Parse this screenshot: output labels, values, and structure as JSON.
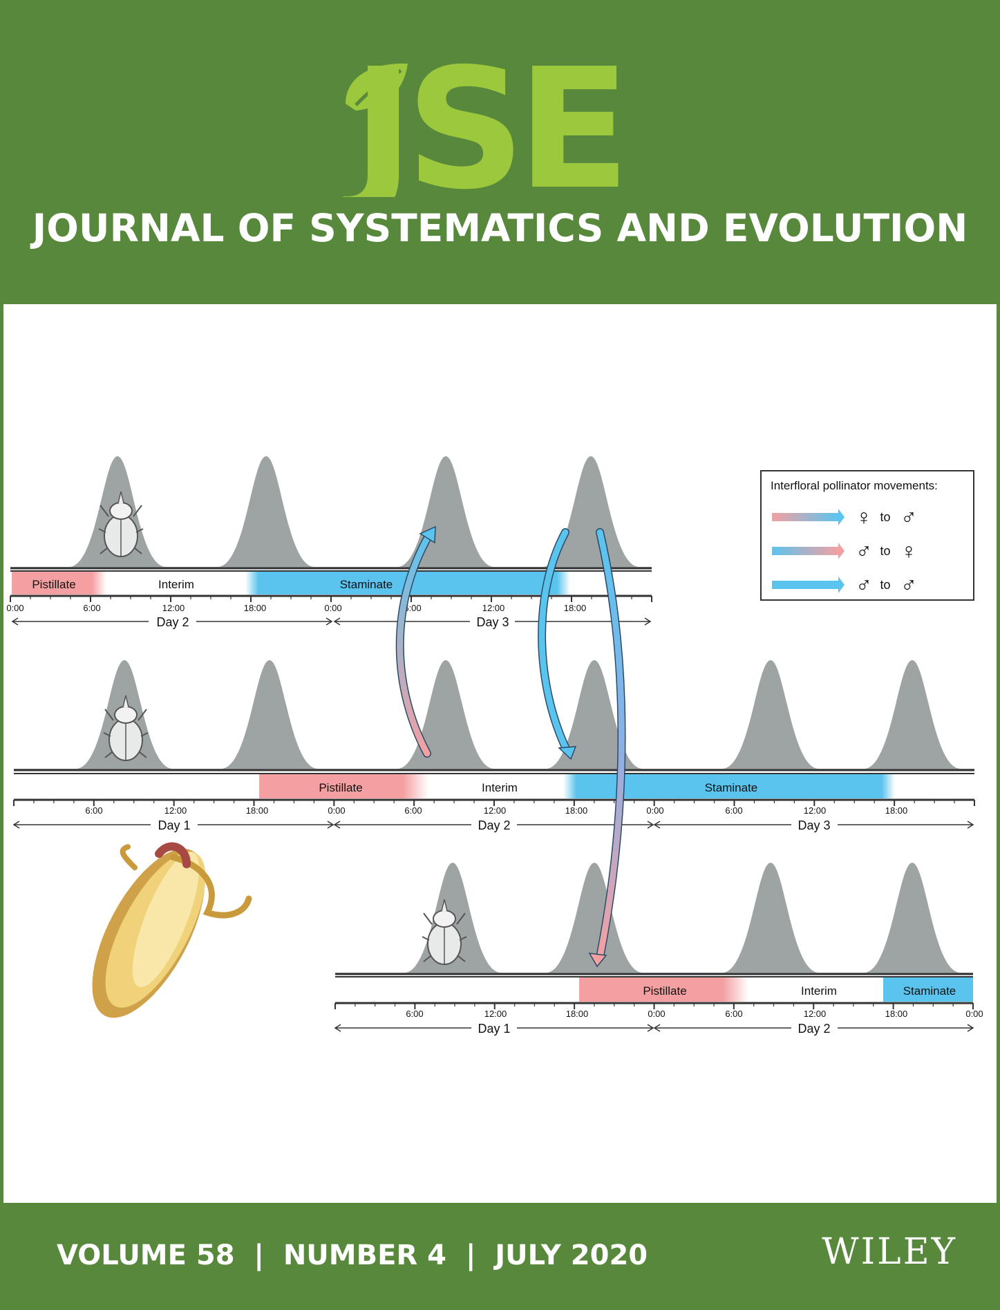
{
  "masthead": {
    "logo": "JSE",
    "journal_title": "JOURNAL OF SYSTEMATICS AND EVOLUTION",
    "colors": {
      "band": "#58883c",
      "logo": "#9bc83c",
      "text": "#ffffff"
    }
  },
  "footer": {
    "issue_line": "VOLUME 58  |  NUMBER 4  |  JULY 2020",
    "publisher": "WILEY"
  },
  "figure": {
    "legend": {
      "title": "Interfloral pollinator movements:",
      "items": [
        {
          "from": "♀",
          "word": "to",
          "to": "♂"
        },
        {
          "from": "♂",
          "word": "to",
          "to": "♀"
        },
        {
          "from": "♂",
          "word": "to",
          "to": "♂"
        }
      ]
    },
    "phases": {
      "pistillate": "Pistillate",
      "interim": "Interim",
      "staminate": "Staminate"
    },
    "colors": {
      "pistillate": "#f4a0a2",
      "staminate": "#5bc4ee",
      "peak": "#9ea3a3",
      "baseline": "#333333"
    },
    "row1": {
      "ticks": [
        "0:00",
        "6:00",
        "12:00",
        "18:00",
        "0:00",
        "6:00",
        "12:00",
        "18:00"
      ],
      "days": [
        "Day 2",
        "Day 3"
      ]
    },
    "row2": {
      "ticks": [
        "6:00",
        "12:00",
        "18:00",
        "0:00",
        "6:00",
        "12:00",
        "18:00",
        "0:00",
        "6:00",
        "12:00",
        "18:00"
      ],
      "days": [
        "Day 1",
        "Day 2",
        "Day 3"
      ]
    },
    "row3": {
      "ticks": [
        "6:00",
        "12:00",
        "18:00",
        "0:00",
        "6:00",
        "12:00",
        "18:00",
        "0:00"
      ],
      "days": [
        "Day 1",
        "Day 2"
      ]
    }
  }
}
